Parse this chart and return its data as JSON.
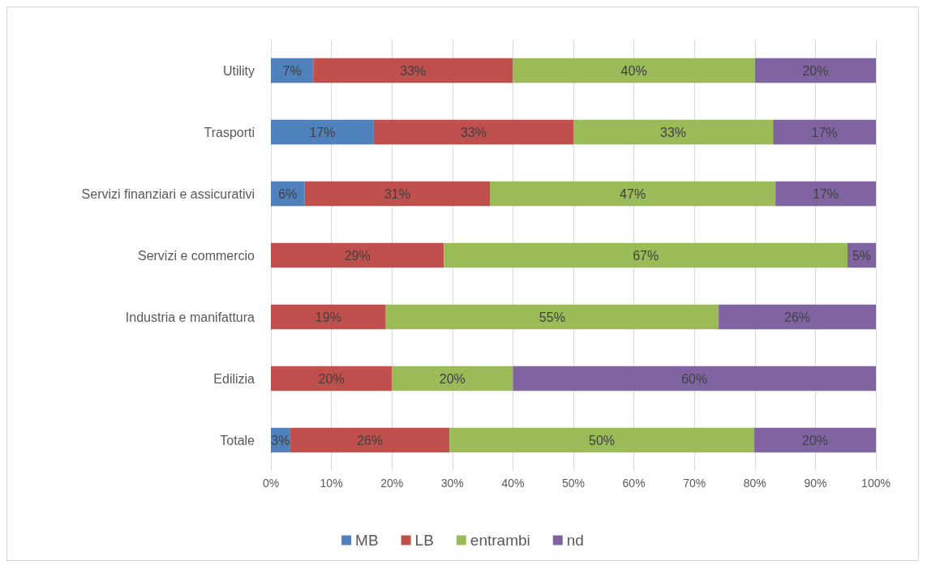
{
  "chart_data": {
    "type": "bar",
    "orientation": "horizontal",
    "stacked": true,
    "categories": [
      "Utility",
      "Trasporti",
      "Servizi finanziari e assicurativi",
      "Servizi e commercio",
      "Industria e manifattura",
      "Edilizia",
      "Totale"
    ],
    "series": [
      {
        "name": "MB",
        "color": "#4f81bd",
        "values": [
          7,
          17,
          5.6,
          null,
          null,
          null,
          3.2
        ],
        "value_labels": [
          "7%",
          "17%",
          "6%",
          null,
          null,
          null,
          "3%"
        ]
      },
      {
        "name": "LB",
        "color": "#c0504d",
        "values": [
          33,
          33,
          30.6,
          28.6,
          19,
          20,
          26.3
        ],
        "value_labels": [
          "33%",
          "33%",
          "31%",
          "29%",
          "19%",
          "20%",
          "26%"
        ]
      },
      {
        "name": "entrambi",
        "color": "#9bbb59",
        "values": [
          40,
          33,
          47.2,
          66.7,
          55,
          20,
          50.4
        ],
        "value_labels": [
          "40%",
          "33%",
          "47%",
          "67%",
          "55%",
          "20%",
          "50%"
        ]
      },
      {
        "name": "nd",
        "color": "#8064a2",
        "values": [
          20,
          17,
          16.6,
          4.7,
          26,
          60,
          20.1
        ],
        "value_labels": [
          "20%",
          "17%",
          "17%",
          "5%",
          "26%",
          "60%",
          "20%"
        ]
      }
    ],
    "xlim": [
      0,
      100
    ],
    "xticks": [
      {
        "value": 0,
        "label": "0%"
      },
      {
        "value": 10,
        "label": "10%"
      },
      {
        "value": 20,
        "label": "20%"
      },
      {
        "value": 30,
        "label": "30%"
      },
      {
        "value": 40,
        "label": "40%"
      },
      {
        "value": 50,
        "label": "50%"
      },
      {
        "value": 60,
        "label": "60%"
      },
      {
        "value": 70,
        "label": "70%"
      },
      {
        "value": 80,
        "label": "80%"
      },
      {
        "value": 90,
        "label": "90%"
      },
      {
        "value": 100,
        "label": "100%"
      }
    ],
    "grid": "x",
    "legend": "bottom"
  }
}
